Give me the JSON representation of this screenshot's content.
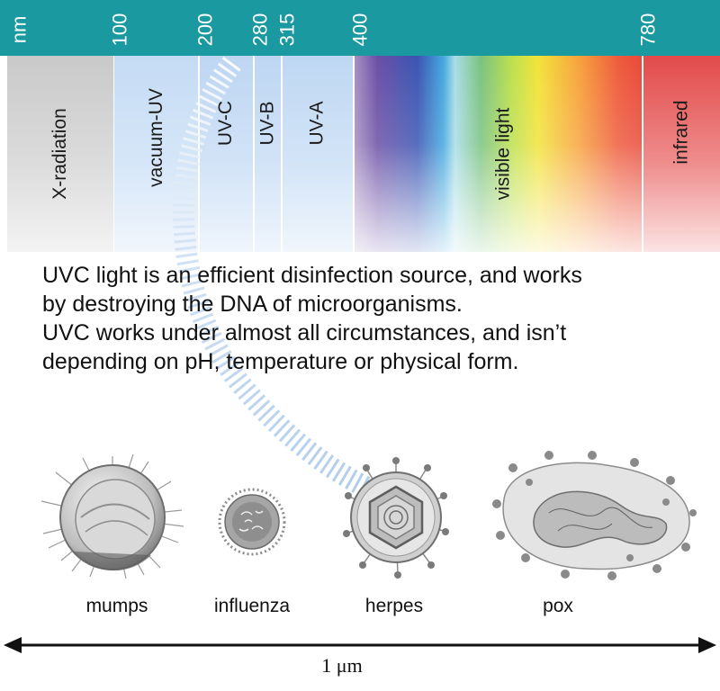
{
  "spectrum": {
    "unit_label": "nm",
    "ticks": [
      "100",
      "200",
      "280",
      "315",
      "400",
      "780"
    ],
    "bands": [
      "X-radiation",
      "vacuum-UV",
      "UV-C",
      "UV-B",
      "UV-A",
      "visible light",
      "infrared"
    ],
    "header_color": "#1a9aa0"
  },
  "intro": {
    "line1": "UVC light is an efficient disinfection source, and works",
    "line2": "by destroying the DNA of microorganisms.",
    "line3": "UVC works under almost all circumstances, and isn’t",
    "line4": "depending on pH, temperature or physical form."
  },
  "viruses": [
    "mumps",
    "influenza",
    "herpes",
    "pox"
  ],
  "scale": {
    "label": "1 μm"
  }
}
